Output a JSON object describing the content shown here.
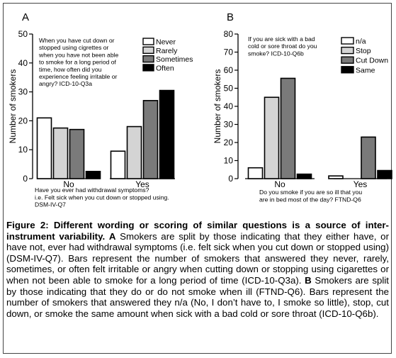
{
  "figure": {
    "caption": {
      "title": "Figure 2: Different wording or scoring of similar questions is a source of inter-instrument variability.",
      "a_label": "A",
      "a_text": " Smokers are split by those indicating that they either have, or have not, ever had withdrawal symptoms (i.e. felt sick when you cut down or stopped using) (DSM-IV-Q7). Bars represent the number of smokers that answered they never, rarely, sometimes, or often felt irritable or angry when cutting down or stopping using cigarettes or when not been able to smoke for a long period of time (ICD-10-Q3a).",
      "b_label": "B",
      "b_text": " Smokers are split by those indicating that they do or do not smoke when ill (FTND-Q6). Bars represent the number of smokers that answered they n/a (No, I don’t have to, I smoke so little), stop, cut down, or smoke the same amount when sick with a bad cold or sore throat (ICD-10-Q6b)."
    }
  },
  "chart_data": [
    {
      "panel": "A",
      "type": "bar",
      "ylabel": "Number of smokers",
      "ylim": [
        0,
        50
      ],
      "yticks": [
        0,
        10,
        20,
        30,
        40,
        50
      ],
      "categories": [
        "No",
        "Yes"
      ],
      "question_lines": [
        "When you have cut down or",
        "stopped using cigrettes or",
        "when you have not been able",
        "to smoke for a long period of",
        "time, how often did you",
        "experience feeling irritable or",
        "angry? ICD-10-Q3a"
      ],
      "xlabel_lines": [
        "Have you ever had withdrawal symptoms?",
        "i.e. Felt sick when you cut down or stopped using.",
        "DSM-IV-Q7"
      ],
      "legend_position": "top-right",
      "series": [
        {
          "name": "Never",
          "color": "#ffffff",
          "values": [
            21,
            9.5
          ]
        },
        {
          "name": "Rarely",
          "color": "#d4d4d4",
          "values": [
            17.5,
            18
          ]
        },
        {
          "name": "Sometimes",
          "color": "#7a7a7a",
          "values": [
            17,
            27
          ]
        },
        {
          "name": "Often",
          "color": "#000000",
          "values": [
            2.5,
            30.5
          ]
        }
      ]
    },
    {
      "panel": "B",
      "type": "bar",
      "ylabel": "Number of smokers",
      "ylim": [
        0,
        80
      ],
      "yticks": [
        0,
        10,
        20,
        30,
        40,
        50,
        60,
        70,
        80
      ],
      "categories": [
        "No",
        "Yes"
      ],
      "question_lines": [
        "If you are sick with a bad",
        "cold or sore throat do you",
        "smoke? ICD-10-Q6b"
      ],
      "xlabel_lines": [
        "Do you smoke if you are so ill that you",
        "are in bed most of the day? FTND-Q6"
      ],
      "legend_position": "top-right",
      "series": [
        {
          "name": "n/a",
          "color": "#ffffff",
          "values": [
            6,
            1.5
          ]
        },
        {
          "name": "Stop",
          "color": "#d4d4d4",
          "values": [
            45,
            0
          ]
        },
        {
          "name": "Cut Down",
          "color": "#7a7a7a",
          "values": [
            55.5,
            23
          ]
        },
        {
          "name": "Same",
          "color": "#000000",
          "values": [
            2.5,
            4.5
          ]
        }
      ]
    }
  ]
}
